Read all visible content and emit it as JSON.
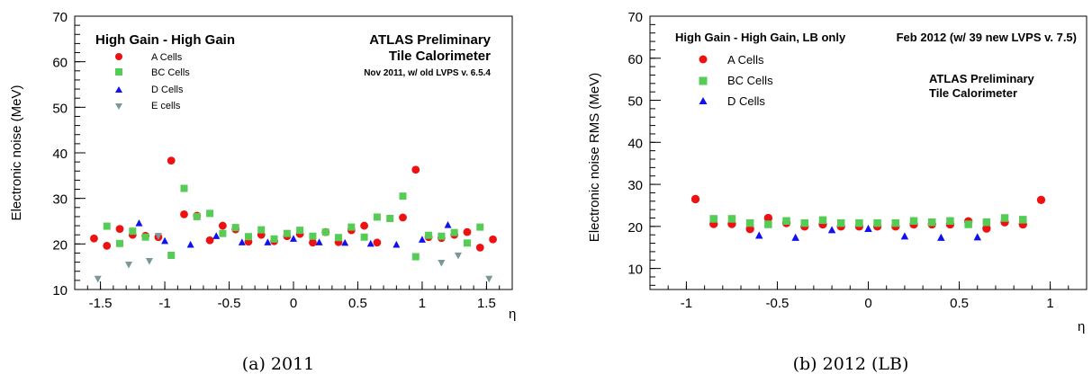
{
  "chart_data": [
    {
      "type": "scatter",
      "caption": "(a) 2011",
      "header_left": "High Gain - High Gain",
      "header_right_1": "ATLAS Preliminary",
      "header_right_2": "Tile Calorimeter",
      "header_right_3": "Nov 2011, w/ old LVPS v. 6.5.4",
      "xlabel": "η",
      "ylabel": "Electronic noise (MeV)",
      "xlim": [
        -1.7,
        1.7
      ],
      "ylim": [
        10,
        70
      ],
      "x_ticks": [
        "-1.5",
        "-1",
        "-0.5",
        "0",
        "0.5",
        "1",
        "1.5"
      ],
      "y_ticks": [
        "10",
        "20",
        "30",
        "40",
        "50",
        "60",
        "70"
      ],
      "series": [
        {
          "name": "A Cells",
          "marker": "circle",
          "color": "#ee1111",
          "points": [
            [
              -1.55,
              21.2
            ],
            [
              -1.45,
              19.6
            ],
            [
              -1.35,
              23.3
            ],
            [
              -1.25,
              22.0
            ],
            [
              -1.15,
              21.8
            ],
            [
              -1.05,
              21.5
            ],
            [
              -0.95,
              38.3
            ],
            [
              -0.85,
              26.5
            ],
            [
              -0.75,
              26.2
            ],
            [
              -0.65,
              20.8
            ],
            [
              -0.55,
              24.0
            ],
            [
              -0.45,
              23.2
            ],
            [
              -0.35,
              20.5
            ],
            [
              -0.25,
              22.0
            ],
            [
              -0.15,
              20.6
            ],
            [
              -0.05,
              21.7
            ],
            [
              0.05,
              22.2
            ],
            [
              0.15,
              20.3
            ],
            [
              0.25,
              22.6
            ],
            [
              0.35,
              20.4
            ],
            [
              0.45,
              23.0
            ],
            [
              0.55,
              24.0
            ],
            [
              0.65,
              20.3
            ],
            [
              0.85,
              25.8
            ],
            [
              0.95,
              36.3
            ],
            [
              1.05,
              21.5
            ],
            [
              1.15,
              21.3
            ],
            [
              1.25,
              22.0
            ],
            [
              1.35,
              22.6
            ],
            [
              1.45,
              19.2
            ],
            [
              1.55,
              21.0
            ]
          ]
        },
        {
          "name": "BC Cells",
          "marker": "square",
          "color": "#55cc55",
          "points": [
            [
              -1.45,
              23.9
            ],
            [
              -1.35,
              20.1
            ],
            [
              -1.25,
              22.8
            ],
            [
              -1.15,
              21.5
            ],
            [
              -0.95,
              17.5
            ],
            [
              -0.85,
              32.2
            ],
            [
              -0.75,
              26.0
            ],
            [
              -0.65,
              26.7
            ],
            [
              -0.55,
              22.3
            ],
            [
              -0.45,
              23.6
            ],
            [
              -0.35,
              21.6
            ],
            [
              -0.25,
              23.1
            ],
            [
              -0.15,
              21.1
            ],
            [
              -0.05,
              22.3
            ],
            [
              0.05,
              23.0
            ],
            [
              0.15,
              21.7
            ],
            [
              0.25,
              22.6
            ],
            [
              0.35,
              21.4
            ],
            [
              0.45,
              23.7
            ],
            [
              0.55,
              21.5
            ],
            [
              0.65,
              25.9
            ],
            [
              0.75,
              25.6
            ],
            [
              0.85,
              30.5
            ],
            [
              0.95,
              17.2
            ],
            [
              1.05,
              21.9
            ],
            [
              1.15,
              21.7
            ],
            [
              1.25,
              22.5
            ],
            [
              1.35,
              20.2
            ],
            [
              1.45,
              23.7
            ]
          ]
        },
        {
          "name": "D Cells",
          "marker": "triangle-up",
          "color": "#1111ee",
          "points": [
            [
              -1.2,
              24.6
            ],
            [
              -1.0,
              20.7
            ],
            [
              -0.8,
              19.9
            ],
            [
              -0.6,
              21.8
            ],
            [
              -0.4,
              20.4
            ],
            [
              -0.2,
              20.4
            ],
            [
              0.0,
              21.2
            ],
            [
              0.2,
              20.4
            ],
            [
              0.4,
              20.3
            ],
            [
              0.6,
              20.1
            ],
            [
              0.8,
              19.9
            ],
            [
              1.0,
              21.0
            ],
            [
              1.2,
              24.2
            ]
          ]
        },
        {
          "name": "E cells",
          "marker": "triangle-down",
          "color": "#7a9898",
          "points": [
            [
              -1.52,
              12.3
            ],
            [
              -1.28,
              15.4
            ],
            [
              -1.12,
              16.2
            ],
            [
              -1.05,
              21.7
            ],
            [
              1.15,
              15.8
            ],
            [
              1.28,
              17.4
            ],
            [
              1.52,
              12.3
            ]
          ]
        }
      ]
    },
    {
      "type": "scatter",
      "caption": "(b) 2012 (LB)",
      "header_left": "High Gain - High Gain, LB only",
      "header_right_1": "Feb 2012 (w/ 39 new LVPS v. 7.5)",
      "header_right_2": "ATLAS Preliminary",
      "header_right_3": "Tile Calorimeter",
      "xlabel": "η",
      "ylabel": "Electronic noise RMS (MeV)",
      "xlim": [
        -1.2,
        1.2
      ],
      "ylim": [
        5,
        70
      ],
      "x_ticks": [
        "-1",
        "-0.5",
        "0",
        "0.5",
        "1"
      ],
      "y_ticks": [
        "10",
        "20",
        "30",
        "40",
        "50",
        "60",
        "70"
      ],
      "series": [
        {
          "name": "A Cells",
          "marker": "circle",
          "color": "#ee1111",
          "points": [
            [
              -0.95,
              26.5
            ],
            [
              -0.85,
              20.6
            ],
            [
              -0.75,
              20.6
            ],
            [
              -0.65,
              19.4
            ],
            [
              -0.55,
              22.0
            ],
            [
              -0.45,
              20.8
            ],
            [
              -0.35,
              20.0
            ],
            [
              -0.25,
              20.5
            ],
            [
              -0.15,
              20.0
            ],
            [
              -0.05,
              20.0
            ],
            [
              0.05,
              20.0
            ],
            [
              0.15,
              20.0
            ],
            [
              0.25,
              20.5
            ],
            [
              0.35,
              20.5
            ],
            [
              0.45,
              20.5
            ],
            [
              0.55,
              21.2
            ],
            [
              0.65,
              19.5
            ],
            [
              0.75,
              21.0
            ],
            [
              0.85,
              20.5
            ],
            [
              0.95,
              26.3
            ]
          ]
        },
        {
          "name": "BC Cells",
          "marker": "square",
          "color": "#55cc55",
          "points": [
            [
              -0.85,
              21.8
            ],
            [
              -0.75,
              21.8
            ],
            [
              -0.65,
              20.8
            ],
            [
              -0.55,
              20.5
            ],
            [
              -0.45,
              21.3
            ],
            [
              -0.35,
              20.8
            ],
            [
              -0.25,
              21.5
            ],
            [
              -0.15,
              20.8
            ],
            [
              -0.05,
              20.8
            ],
            [
              0.05,
              20.8
            ],
            [
              0.15,
              20.8
            ],
            [
              0.25,
              21.3
            ],
            [
              0.35,
              21.0
            ],
            [
              0.45,
              21.3
            ],
            [
              0.55,
              20.5
            ],
            [
              0.65,
              21.0
            ],
            [
              0.75,
              22.0
            ],
            [
              0.85,
              21.6
            ]
          ]
        },
        {
          "name": "D Cells",
          "marker": "triangle-up",
          "color": "#1111ee",
          "points": [
            [
              -0.6,
              17.9
            ],
            [
              -0.4,
              17.4
            ],
            [
              -0.2,
              19.2
            ],
            [
              0.0,
              19.5
            ],
            [
              0.2,
              17.7
            ],
            [
              0.4,
              17.4
            ],
            [
              0.6,
              17.5
            ]
          ]
        }
      ]
    }
  ]
}
